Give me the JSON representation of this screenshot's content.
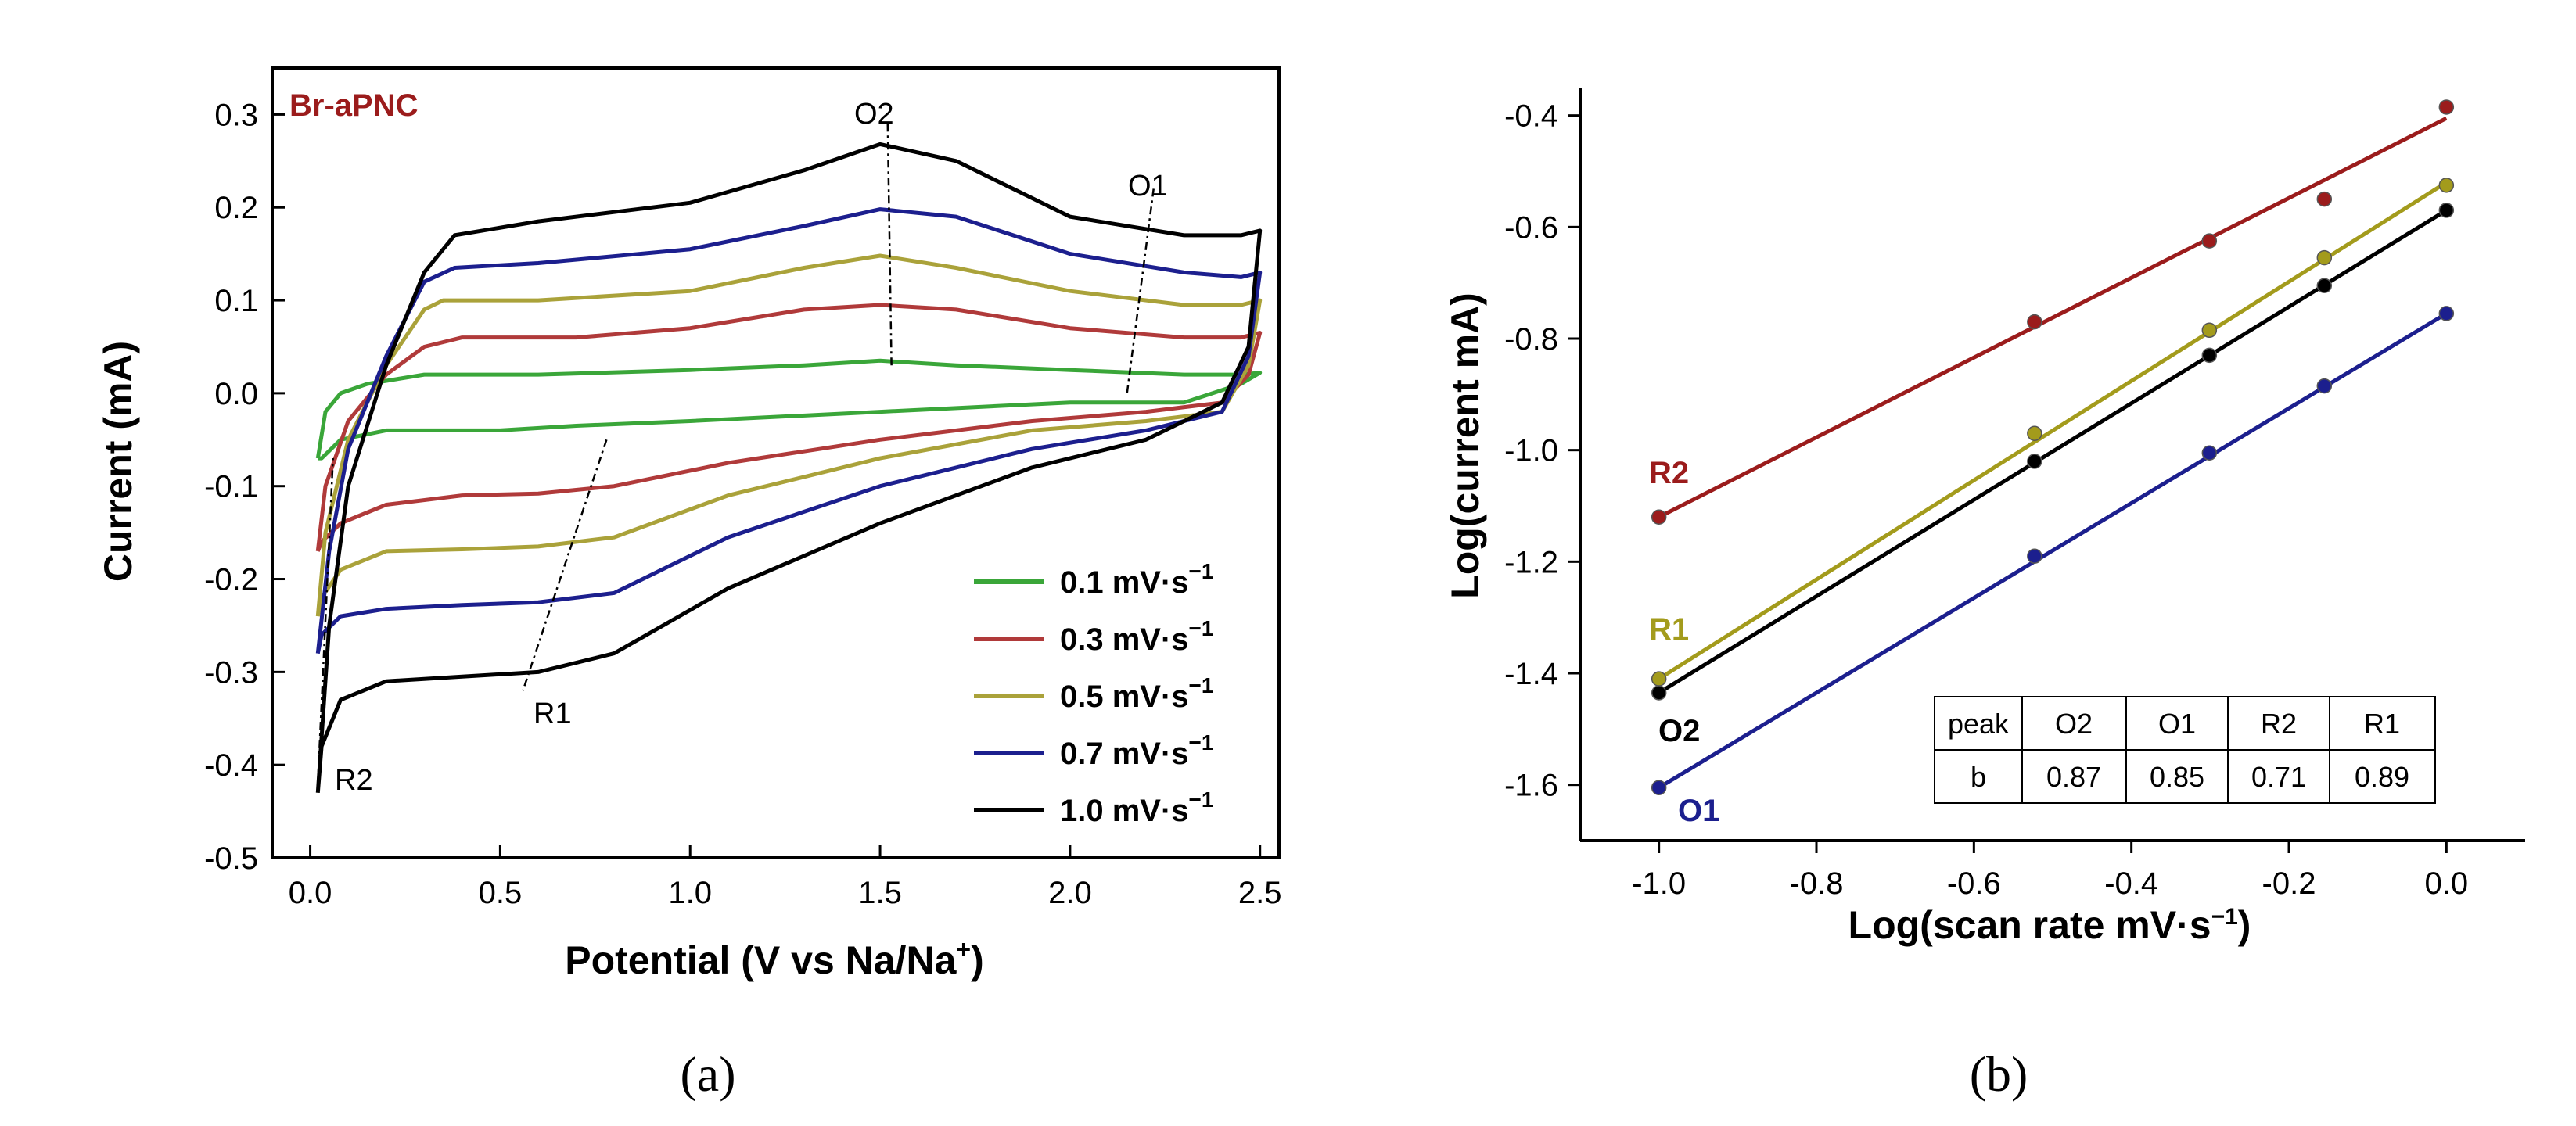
{
  "chart_data": [
    {
      "panel": "(a)",
      "type": "line",
      "title": "",
      "sample_label": "Br-aPNC",
      "xlabel": "Potential (V vs Na/Na",
      "xlabel_sup": "+",
      "xlabel_end": ")",
      "ylabel": "Current (mA)",
      "xlim": [
        -0.1,
        2.55
      ],
      "ylim": [
        -0.5,
        0.35
      ],
      "xticks": [
        "0.0",
        "0.5",
        "1.0",
        "1.5",
        "2.0",
        "2.5"
      ],
      "yticks": [
        "-0.5",
        "-0.4",
        "-0.3",
        "-0.2",
        "-0.1",
        "0.0",
        "0.1",
        "0.2",
        "0.3"
      ],
      "legend_placement": "bottom-right",
      "peak_annotations": [
        "O2",
        "O1",
        "R1",
        "R2"
      ],
      "series": [
        {
          "name": "0.1 mV·s",
          "sup": "−1",
          "color": "#3aa639",
          "anodic": [
            [
              0.02,
              -0.07
            ],
            [
              0.04,
              -0.02
            ],
            [
              0.08,
              0.0
            ],
            [
              0.15,
              0.01
            ],
            [
              0.3,
              0.02
            ],
            [
              0.6,
              0.02
            ],
            [
              1.0,
              0.025
            ],
            [
              1.3,
              0.03
            ],
            [
              1.5,
              0.035
            ],
            [
              1.7,
              0.03
            ],
            [
              2.0,
              0.025
            ],
            [
              2.3,
              0.02
            ],
            [
              2.45,
              0.02
            ],
            [
              2.5,
              0.022
            ]
          ],
          "cathodic": [
            [
              2.5,
              0.022
            ],
            [
              2.45,
              0.01
            ],
            [
              2.3,
              -0.01
            ],
            [
              2.0,
              -0.01
            ],
            [
              1.5,
              -0.02
            ],
            [
              1.0,
              -0.03
            ],
            [
              0.7,
              -0.035
            ],
            [
              0.5,
              -0.04
            ],
            [
              0.2,
              -0.04
            ],
            [
              0.08,
              -0.05
            ],
            [
              0.03,
              -0.07
            ],
            [
              0.02,
              -0.07
            ]
          ]
        },
        {
          "name": "0.3 mV·s",
          "sup": "−1",
          "color": "#b03a3a",
          "anodic": [
            [
              0.02,
              -0.17
            ],
            [
              0.04,
              -0.1
            ],
            [
              0.1,
              -0.03
            ],
            [
              0.2,
              0.02
            ],
            [
              0.3,
              0.05
            ],
            [
              0.4,
              0.06
            ],
            [
              0.7,
              0.06
            ],
            [
              1.0,
              0.07
            ],
            [
              1.3,
              0.09
            ],
            [
              1.5,
              0.095
            ],
            [
              1.7,
              0.09
            ],
            [
              2.0,
              0.07
            ],
            [
              2.3,
              0.06
            ],
            [
              2.45,
              0.06
            ],
            [
              2.5,
              0.065
            ]
          ],
          "cathodic": [
            [
              2.5,
              0.065
            ],
            [
              2.47,
              0.02
            ],
            [
              2.4,
              -0.01
            ],
            [
              2.2,
              -0.02
            ],
            [
              1.9,
              -0.03
            ],
            [
              1.5,
              -0.05
            ],
            [
              1.1,
              -0.075
            ],
            [
              0.8,
              -0.1
            ],
            [
              0.6,
              -0.108
            ],
            [
              0.4,
              -0.11
            ],
            [
              0.2,
              -0.12
            ],
            [
              0.08,
              -0.14
            ],
            [
              0.03,
              -0.16
            ],
            [
              0.02,
              -0.17
            ]
          ]
        },
        {
          "name": "0.5 mV·s",
          "sup": "−1",
          "color": "#aaa23a",
          "anodic": [
            [
              0.02,
              -0.24
            ],
            [
              0.04,
              -0.15
            ],
            [
              0.1,
              -0.05
            ],
            [
              0.2,
              0.03
            ],
            [
              0.3,
              0.09
            ],
            [
              0.35,
              0.1
            ],
            [
              0.6,
              0.1
            ],
            [
              1.0,
              0.11
            ],
            [
              1.3,
              0.135
            ],
            [
              1.5,
              0.148
            ],
            [
              1.7,
              0.135
            ],
            [
              2.0,
              0.11
            ],
            [
              2.3,
              0.095
            ],
            [
              2.45,
              0.095
            ],
            [
              2.5,
              0.1
            ]
          ],
          "cathodic": [
            [
              2.5,
              0.1
            ],
            [
              2.47,
              0.03
            ],
            [
              2.4,
              -0.02
            ],
            [
              2.2,
              -0.03
            ],
            [
              1.9,
              -0.04
            ],
            [
              1.5,
              -0.07
            ],
            [
              1.1,
              -0.11
            ],
            [
              0.8,
              -0.155
            ],
            [
              0.6,
              -0.165
            ],
            [
              0.4,
              -0.168
            ],
            [
              0.2,
              -0.17
            ],
            [
              0.08,
              -0.19
            ],
            [
              0.03,
              -0.22
            ],
            [
              0.02,
              -0.24
            ]
          ]
        },
        {
          "name": "0.7 mV·s",
          "sup": "−1",
          "color": "#1c1f8e",
          "anodic": [
            [
              0.02,
              -0.28
            ],
            [
              0.05,
              -0.17
            ],
            [
              0.1,
              -0.06
            ],
            [
              0.2,
              0.04
            ],
            [
              0.3,
              0.12
            ],
            [
              0.38,
              0.135
            ],
            [
              0.6,
              0.14
            ],
            [
              1.0,
              0.155
            ],
            [
              1.3,
              0.18
            ],
            [
              1.5,
              0.198
            ],
            [
              1.7,
              0.19
            ],
            [
              2.0,
              0.15
            ],
            [
              2.3,
              0.13
            ],
            [
              2.45,
              0.125
            ],
            [
              2.5,
              0.13
            ]
          ],
          "cathodic": [
            [
              2.5,
              0.13
            ],
            [
              2.47,
              0.04
            ],
            [
              2.4,
              -0.02
            ],
            [
              2.2,
              -0.04
            ],
            [
              1.9,
              -0.06
            ],
            [
              1.5,
              -0.1
            ],
            [
              1.1,
              -0.155
            ],
            [
              0.8,
              -0.215
            ],
            [
              0.6,
              -0.225
            ],
            [
              0.4,
              -0.228
            ],
            [
              0.2,
              -0.232
            ],
            [
              0.08,
              -0.24
            ],
            [
              0.03,
              -0.26
            ],
            [
              0.02,
              -0.28
            ]
          ]
        },
        {
          "name": "1.0 mV·s",
          "sup": "−1",
          "color": "#000000",
          "anodic": [
            [
              0.02,
              -0.43
            ],
            [
              0.05,
              -0.25
            ],
            [
              0.1,
              -0.1
            ],
            [
              0.2,
              0.03
            ],
            [
              0.3,
              0.13
            ],
            [
              0.38,
              0.17
            ],
            [
              0.6,
              0.185
            ],
            [
              1.0,
              0.205
            ],
            [
              1.3,
              0.24
            ],
            [
              1.5,
              0.268
            ],
            [
              1.7,
              0.25
            ],
            [
              2.0,
              0.19
            ],
            [
              2.3,
              0.17
            ],
            [
              2.45,
              0.17
            ],
            [
              2.5,
              0.175
            ]
          ],
          "cathodic": [
            [
              2.5,
              0.175
            ],
            [
              2.47,
              0.05
            ],
            [
              2.4,
              -0.01
            ],
            [
              2.2,
              -0.05
            ],
            [
              1.9,
              -0.08
            ],
            [
              1.5,
              -0.14
            ],
            [
              1.1,
              -0.21
            ],
            [
              0.8,
              -0.28
            ],
            [
              0.6,
              -0.3
            ],
            [
              0.4,
              -0.305
            ],
            [
              0.2,
              -0.31
            ],
            [
              0.08,
              -0.33
            ],
            [
              0.03,
              -0.38
            ],
            [
              0.02,
              -0.43
            ]
          ]
        }
      ]
    },
    {
      "panel": "(b)",
      "type": "scatter",
      "title": "",
      "xlabel": "Log(scan rate mV·s",
      "xlabel_sup": "−1",
      "xlabel_end": ")",
      "ylabel": "Log(current mA)",
      "xlim": [
        -1.1,
        0.1
      ],
      "ylim": [
        -1.7,
        -0.35
      ],
      "xticks": [
        "-1.0",
        "-0.8",
        "-0.6",
        "-0.4",
        "-0.2",
        "0.0"
      ],
      "yticks": [
        "-1.6",
        "-1.4",
        "-1.2",
        "-1.0",
        "-0.8",
        "-0.6",
        "-0.4"
      ],
      "x": [
        -1.0,
        -0.523,
        -0.301,
        -0.155,
        0.0
      ],
      "series": [
        {
          "name": "R2",
          "color": "#9b1c1c",
          "values": [
            -1.12,
            -0.77,
            -0.625,
            -0.55,
            -0.385
          ],
          "fit": [
            [
              -1.0,
              -1.12
            ],
            [
              0.0,
              -0.405
            ]
          ]
        },
        {
          "name": "R1",
          "color": "#a39b1c",
          "values": [
            -1.41,
            -0.97,
            -0.785,
            -0.655,
            -0.525
          ],
          "fit": [
            [
              -1.0,
              -1.41
            ],
            [
              0.0,
              -0.52
            ]
          ]
        },
        {
          "name": "O2",
          "color": "#000000",
          "values": [
            -1.435,
            -1.02,
            -0.83,
            -0.705,
            -0.57
          ],
          "fit": [
            [
              -1.0,
              -1.435
            ],
            [
              0.0,
              -0.57
            ]
          ]
        },
        {
          "name": "O1",
          "color": "#1c1f8e",
          "values": [
            -1.605,
            -1.19,
            -1.005,
            -0.885,
            -0.755
          ],
          "fit": [
            [
              -1.0,
              -1.605
            ],
            [
              0.0,
              -0.755
            ]
          ]
        }
      ],
      "table": {
        "header": [
          "peak",
          "O2",
          "O1",
          "R2",
          "R1"
        ],
        "row": [
          "b",
          "0.87",
          "0.85",
          "0.71",
          "0.89"
        ]
      }
    }
  ]
}
